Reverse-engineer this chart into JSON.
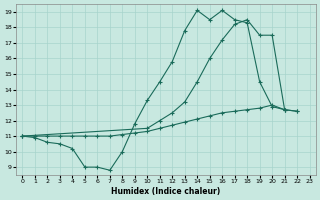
{
  "xlabel": "Humidex (Indice chaleur)",
  "ylabel": "",
  "xlim": [
    -0.5,
    23.5
  ],
  "ylim": [
    8.5,
    19.5
  ],
  "xticks": [
    0,
    1,
    2,
    3,
    4,
    5,
    6,
    7,
    8,
    9,
    10,
    11,
    12,
    13,
    14,
    15,
    16,
    17,
    18,
    19,
    20,
    21,
    22,
    23
  ],
  "yticks": [
    9,
    10,
    11,
    12,
    13,
    14,
    15,
    16,
    17,
    18,
    19
  ],
  "bg_color": "#c8e8e0",
  "grid_color": "#a8d4cc",
  "line_color": "#1a6b5a",
  "line1": [
    [
      0,
      11
    ],
    [
      1,
      10.9
    ],
    [
      2,
      10.6
    ],
    [
      3,
      10.5
    ],
    [
      4,
      10.2
    ],
    [
      5,
      9.0
    ],
    [
      6,
      9.0
    ],
    [
      7,
      8.8
    ],
    [
      8,
      10.0
    ],
    [
      9,
      11.8
    ],
    [
      10,
      13.3
    ],
    [
      11,
      14.5
    ],
    [
      12,
      15.8
    ],
    [
      13,
      17.8
    ],
    [
      14,
      19.1
    ],
    [
      15,
      18.5
    ],
    [
      16,
      19.1
    ],
    [
      17,
      18.5
    ],
    [
      18,
      18.3
    ],
    [
      19,
      14.5
    ],
    [
      20,
      12.9
    ],
    [
      21,
      12.7
    ]
  ],
  "line2": [
    [
      0,
      11
    ],
    [
      10,
      11.5
    ],
    [
      11,
      12.0
    ],
    [
      12,
      12.5
    ],
    [
      13,
      13.2
    ],
    [
      14,
      14.5
    ],
    [
      15,
      16.0
    ],
    [
      16,
      17.2
    ],
    [
      17,
      18.2
    ],
    [
      18,
      18.5
    ],
    [
      19,
      17.5
    ],
    [
      20,
      17.5
    ],
    [
      21,
      12.7
    ],
    [
      22,
      12.6
    ]
  ],
  "line3": [
    [
      0,
      11
    ],
    [
      1,
      11.0
    ],
    [
      2,
      11.0
    ],
    [
      3,
      11.0
    ],
    [
      4,
      11.0
    ],
    [
      5,
      11.0
    ],
    [
      6,
      11.0
    ],
    [
      7,
      11.0
    ],
    [
      8,
      11.1
    ],
    [
      9,
      11.2
    ],
    [
      10,
      11.3
    ],
    [
      11,
      11.5
    ],
    [
      12,
      11.7
    ],
    [
      13,
      11.9
    ],
    [
      14,
      12.1
    ],
    [
      15,
      12.3
    ],
    [
      16,
      12.5
    ],
    [
      17,
      12.6
    ],
    [
      18,
      12.7
    ],
    [
      19,
      12.8
    ],
    [
      20,
      13.0
    ],
    [
      21,
      12.7
    ],
    [
      22,
      12.6
    ]
  ]
}
